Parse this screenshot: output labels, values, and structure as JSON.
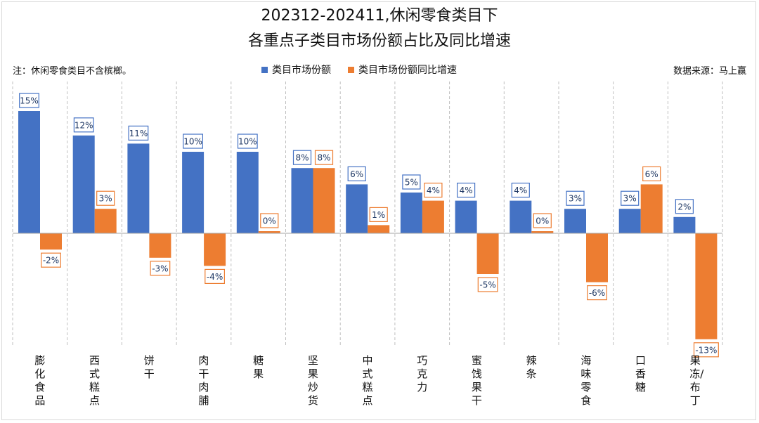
{
  "header": {
    "title_line1": "202312-202411,休闲零食类目下",
    "title_line2": "各重点子类目市场份额占比及同比增速",
    "note": "注：休闲零食类目不含槟榔。",
    "source": "数据来源：马上赢"
  },
  "chart_data": {
    "type": "bar",
    "categories": [
      "膨化食品",
      "西式糕点",
      "饼干",
      "肉干肉脯",
      "糖果",
      "坚果炒货",
      "中式糕点",
      "巧克力",
      "蜜饯果干",
      "辣条",
      "海味零食",
      "口香糖",
      "果冻/布丁"
    ],
    "series": [
      {
        "name": "类目市场份额",
        "color": "#4472C4",
        "values": [
          15,
          12,
          11,
          10,
          10,
          8,
          6,
          5,
          4,
          4,
          3,
          3,
          2
        ],
        "labels": [
          "15%",
          "12%",
          "11%",
          "10%",
          "10%",
          "8%",
          "6%",
          "5%",
          "4%",
          "4%",
          "3%",
          "3%",
          "2%"
        ]
      },
      {
        "name": "类目市场份额同比增速",
        "color": "#ED7D31",
        "values": [
          -2,
          3,
          -3,
          -4,
          0,
          8,
          1,
          4,
          -5,
          0,
          -6,
          6,
          -13
        ],
        "labels": [
          "-2%",
          "3%",
          "-3%",
          "-4%",
          "0%",
          "8%",
          "1%",
          "4%",
          "-5%",
          "0%",
          "-6%",
          "6%",
          "-13%"
        ]
      }
    ],
    "legend_position": "top",
    "ylim": [
      -15,
      20
    ],
    "grid": "vertical-dashed"
  }
}
